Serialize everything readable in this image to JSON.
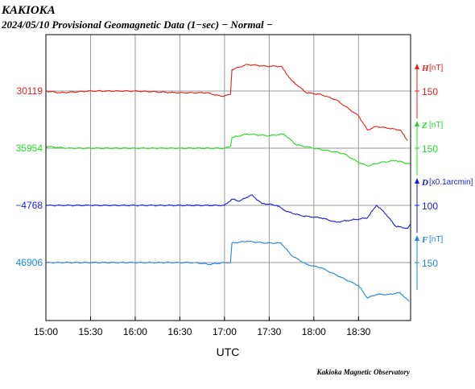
{
  "header": {
    "station": "KAKIOKA",
    "subtitle": "2024/05/10  Provisional Geomagnetic Data (1−sec)  − Normal −"
  },
  "footer": {
    "credit": "Kakioka Magnetic Observatory"
  },
  "chart_data": {
    "type": "line",
    "xlabel": "UTC",
    "x_ticks": [
      "15:00",
      "15:30",
      "16:00",
      "16:30",
      "17:00",
      "17:30",
      "18:00",
      "18:30"
    ],
    "xlim": [
      "15:00",
      "19:05"
    ],
    "grid": true,
    "series": [
      {
        "name": "H",
        "unit": "[nT]",
        "color": "#e8201c",
        "left_label": "30119",
        "right_label": "150",
        "points": [
          [
            "15:00",
            30119
          ],
          [
            "15:10",
            30118
          ],
          [
            "15:30",
            30119
          ],
          [
            "16:00",
            30119
          ],
          [
            "16:30",
            30118
          ],
          [
            "16:48",
            30118
          ],
          [
            "16:58",
            30116
          ],
          [
            "17:04",
            30117
          ],
          [
            "17:05",
            30131
          ],
          [
            "17:15",
            30134
          ],
          [
            "17:28",
            30133
          ],
          [
            "17:38",
            30133
          ],
          [
            "17:45",
            30125
          ],
          [
            "17:55",
            30118
          ],
          [
            "18:05",
            30117
          ],
          [
            "18:15",
            30114
          ],
          [
            "18:25",
            30108
          ],
          [
            "18:30",
            30105
          ],
          [
            "18:36",
            30097
          ],
          [
            "18:42",
            30099
          ],
          [
            "18:50",
            30098
          ],
          [
            "18:58",
            30097
          ],
          [
            "19:03",
            30091
          ]
        ]
      },
      {
        "name": "Z",
        "unit": "[nT]",
        "color": "#22e022",
        "left_label": "35954",
        "right_label": "150",
        "points": [
          [
            "15:00",
            35955
          ],
          [
            "15:15",
            35954
          ],
          [
            "15:30",
            35954
          ],
          [
            "16:00",
            35954
          ],
          [
            "16:30",
            35954
          ],
          [
            "16:50",
            35954
          ],
          [
            "17:00",
            35954
          ],
          [
            "17:04",
            35955
          ],
          [
            "17:05",
            35960
          ],
          [
            "17:15",
            35962
          ],
          [
            "17:30",
            35961
          ],
          [
            "17:40",
            35962
          ],
          [
            "17:48",
            35956
          ],
          [
            "18:00",
            35954
          ],
          [
            "18:20",
            35951
          ],
          [
            "18:30",
            35946
          ],
          [
            "18:36",
            35944
          ],
          [
            "18:45",
            35946
          ],
          [
            "18:55",
            35947
          ],
          [
            "19:05",
            35945
          ]
        ]
      },
      {
        "name": "D",
        "unit": "[x0.1arcmin]",
        "color": "#1a1ae6",
        "left_label": "−4768",
        "right_label": "100",
        "points": [
          [
            "15:00",
            -4768
          ],
          [
            "15:30",
            -4768
          ],
          [
            "16:00",
            -4768
          ],
          [
            "16:30",
            -4768
          ],
          [
            "17:00",
            -4768
          ],
          [
            "17:05",
            -4765
          ],
          [
            "17:10",
            -4766
          ],
          [
            "17:18",
            -4763
          ],
          [
            "17:25",
            -4767
          ],
          [
            "17:35",
            -4768
          ],
          [
            "17:42",
            -4771
          ],
          [
            "17:52",
            -4773
          ],
          [
            "18:05",
            -4774
          ],
          [
            "18:15",
            -4776
          ],
          [
            "18:25",
            -4775
          ],
          [
            "18:36",
            -4774
          ],
          [
            "18:42",
            -4768
          ],
          [
            "18:47",
            -4771
          ],
          [
            "18:55",
            -4778
          ],
          [
            "19:03",
            -4779
          ],
          [
            "19:05",
            -4777
          ]
        ]
      },
      {
        "name": "F",
        "unit": "[nT]",
        "color": "#1f86e6",
        "left_label": "46906",
        "right_label": "150",
        "points": [
          [
            "15:00",
            46906
          ],
          [
            "15:30",
            46906
          ],
          [
            "16:00",
            46906
          ],
          [
            "16:30",
            46906
          ],
          [
            "16:40",
            46906
          ],
          [
            "16:50",
            46905
          ],
          [
            "17:00",
            46906
          ],
          [
            "17:04",
            46906
          ],
          [
            "17:05",
            46917
          ],
          [
            "17:15",
            46918
          ],
          [
            "17:28",
            46917
          ],
          [
            "17:38",
            46917
          ],
          [
            "17:45",
            46910
          ],
          [
            "17:55",
            46905
          ],
          [
            "18:05",
            46903
          ],
          [
            "18:15",
            46899
          ],
          [
            "18:25",
            46895
          ],
          [
            "18:30",
            46893
          ],
          [
            "18:36",
            46886
          ],
          [
            "18:42",
            46888
          ],
          [
            "18:50",
            46888
          ],
          [
            "18:58",
            46889
          ],
          [
            "19:04",
            46884
          ]
        ]
      }
    ]
  }
}
